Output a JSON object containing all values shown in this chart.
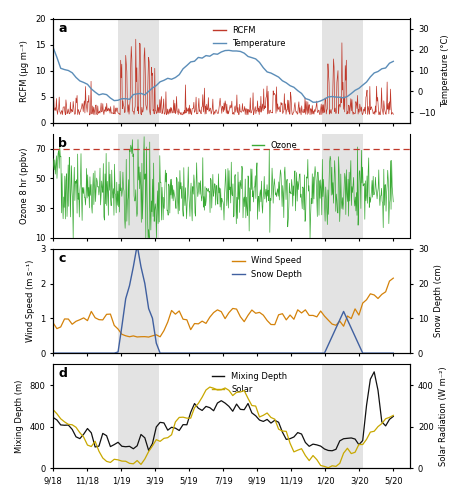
{
  "x_tick_labels": [
    "9/18",
    "11/18",
    "1/19",
    "3/19",
    "5/19",
    "7/19",
    "9/19",
    "11/19",
    "1/20",
    "3/20",
    "5/20"
  ],
  "tick_positions": [
    0,
    2,
    4,
    6,
    8,
    10,
    12,
    14,
    16,
    18,
    20
  ],
  "shade1": [
    3.8,
    6.2
  ],
  "shade2": [
    15.8,
    18.2
  ],
  "xmin": 0,
  "xmax": 21,
  "panel_a": {
    "ylabel_left": "RCFM (μg m⁻³)",
    "ylabel_right": "Temperature (°C)",
    "ylim_left": [
      0,
      20
    ],
    "ylim_right": [
      -15,
      35
    ],
    "yticks_left": [
      0,
      5,
      10,
      15,
      20
    ],
    "yticks_right": [
      -10,
      0,
      10,
      20,
      30
    ],
    "label": "a",
    "rcfm_color": "#c0392b",
    "temp_color": "#5b8db8"
  },
  "panel_b": {
    "ylabel_left": "Ozone 8 hr (ppbv)",
    "ylim_left": [
      10,
      80
    ],
    "yticks_left": [
      10,
      30,
      50,
      70
    ],
    "label": "b",
    "ozone_color": "#3aaa35",
    "dashed_line": 70,
    "dashed_color": "#c0392b"
  },
  "panel_c": {
    "ylabel_left": "Wind Speed (m s⁻¹)",
    "ylabel_right": "Snow Depth (cm)",
    "ylim_left": [
      0,
      3.0
    ],
    "ylim_right": [
      0,
      30
    ],
    "yticks_left": [
      0.0,
      1.0,
      2.0,
      3.0
    ],
    "yticks_right": [
      0,
      10,
      20,
      30
    ],
    "label": "c",
    "wind_color": "#d4820a",
    "snow_color": "#4060a0"
  },
  "panel_d": {
    "ylabel_left": "Mixing Depth (m)",
    "ylabel_right": "Solar Radiation (W m⁻²)",
    "ylim_left": [
      0,
      1000
    ],
    "ylim_right": [
      0,
      500
    ],
    "yticks_left": [
      0,
      400,
      800
    ],
    "yticks_right": [
      0,
      200,
      400
    ],
    "label": "d",
    "mixing_color": "#111111",
    "solar_color": "#c8a800"
  },
  "shade_color": "#cccccc",
  "shade_alpha": 0.55
}
